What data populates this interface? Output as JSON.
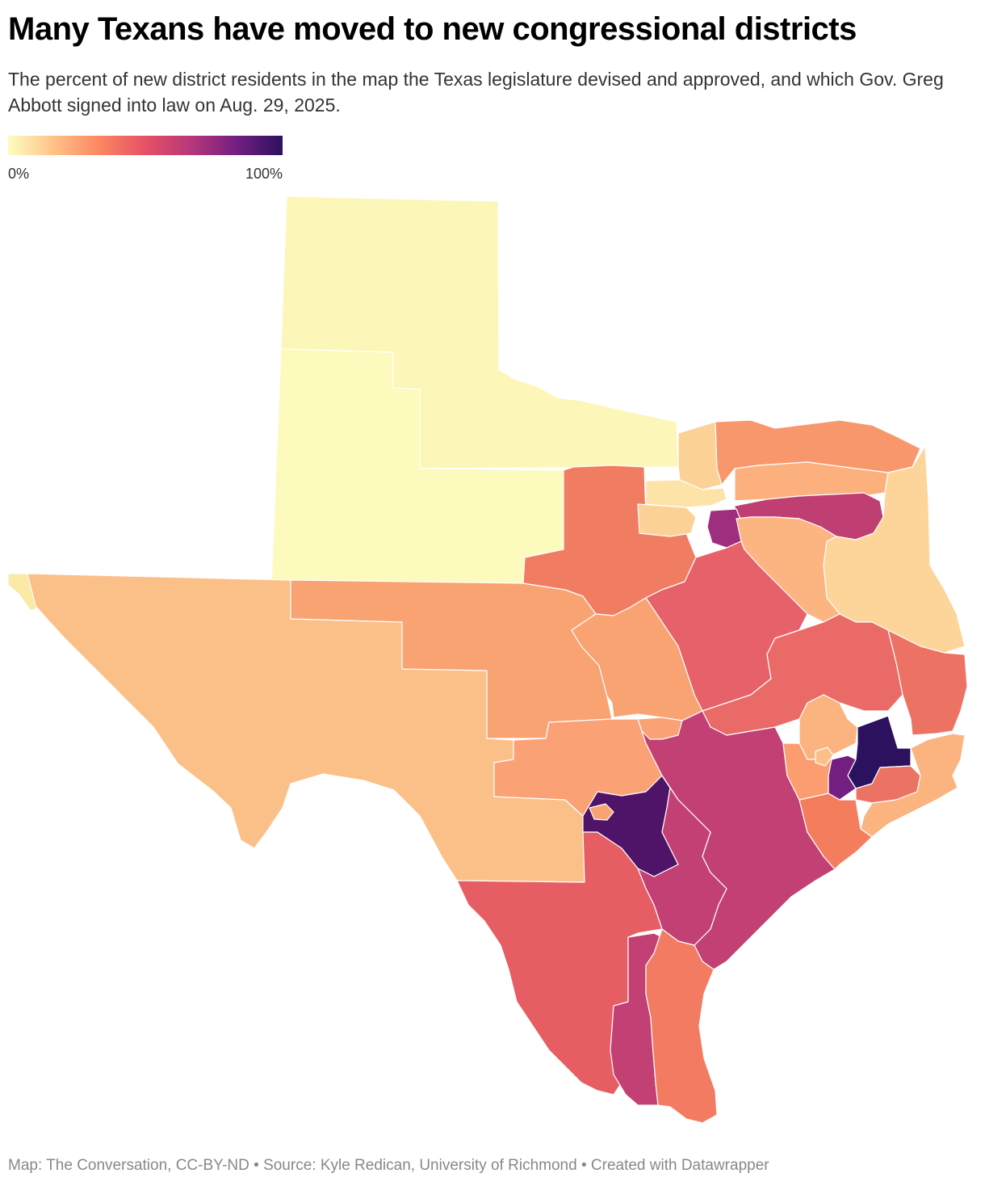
{
  "title": "Many Texans have moved to new congressional districts",
  "subtitle": "The percent of new district residents in the map the Texas legislature devised and approved, and which Gov. Greg Abbott signed into law on Aug. 29, 2025.",
  "legend": {
    "min_label": "0%",
    "max_label": "100%",
    "min_value": 0,
    "max_value": 100,
    "colors": [
      "#fcfdbf",
      "#fec287",
      "#fb8761",
      "#e65164",
      "#b73779",
      "#721f81",
      "#2c115f"
    ]
  },
  "footer": {
    "map_credit": "Map: The Conversation, CC-BY-ND",
    "separator": "•",
    "source": "Source: Kyle Redican, University of Richmond",
    "created_with": "Created with Datawrapper"
  },
  "map_regions": {
    "panhandle_north": "#fcf6b8",
    "panhandle_south": "#fcfabd",
    "far_west_corner": "#fbe9a6",
    "west": "#fbc088",
    "west_central": "#f9a272",
    "north_central": "#f07d62",
    "north_dfw_west": "#fbd196",
    "north_dfw_strip": "#fde3a8",
    "north_east_top": "#f8976c",
    "north_east_mid": "#fcb07d",
    "dfw_east_corridor": "#c03f72",
    "dfw_core": "#9e2f7f",
    "east_edge": "#fdd49a",
    "east_mid": "#fcb480",
    "central_north": "#e7616a",
    "central_texas": "#f9a272",
    "east_central": "#ea6a67",
    "east_pines": "#ec7364",
    "hill_country": "#fba176",
    "austin_east": "#c24073",
    "san_antonio": "#4f1468",
    "south_central": "#c24073",
    "coastal_bend": "#c24073",
    "south_texas": "#e65d64",
    "valley_strip": "#c24073",
    "coastal_south": "#f27b62",
    "far_southwest": "#fbc088",
    "houston_north": "#fbb47f",
    "houston_core": "#2c115f",
    "houston_inner": "#721f81",
    "houston_east": "#ec7364",
    "houston_southeast": "#fbb47f",
    "houston_south": "#f47d5e",
    "houston_west": "#fb9d6f",
    "san_antonio_core": "#f9a272"
  }
}
